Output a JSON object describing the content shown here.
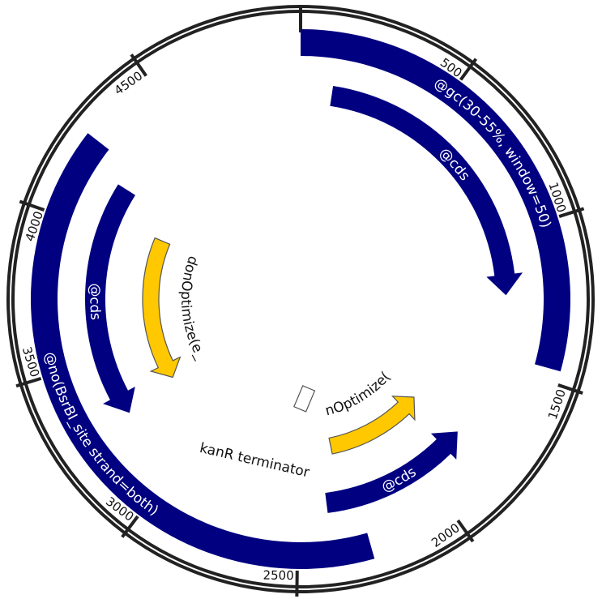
{
  "plasmid": {
    "sequence_length": 4980,
    "colors": {
      "backbone": "#222222",
      "feature_blue": "#000080",
      "feature_yellow": "#ffc800",
      "yellow_outline": "#555555",
      "label_on_blue": "#ffffff",
      "label_outside": "#111111"
    },
    "ticks": [
      {
        "position": 0,
        "label": ""
      },
      {
        "position": 500,
        "label": "500"
      },
      {
        "position": 1000,
        "label": "1000"
      },
      {
        "position": 1500,
        "label": "1500"
      },
      {
        "position": 2000,
        "label": "2000"
      },
      {
        "position": 2500,
        "label": "2500"
      },
      {
        "position": 3000,
        "label": "3000"
      },
      {
        "position": 3500,
        "label": "3500"
      },
      {
        "position": 4000,
        "label": "4000"
      },
      {
        "position": 4500,
        "label": "4500"
      }
    ],
    "features": [
      {
        "name": "gc-constraint",
        "label": "@gc(30-55%, window=50)",
        "start": 0,
        "end": 1460,
        "strand": 0,
        "track": "outer",
        "color": "blue",
        "label_position": "on-feature"
      },
      {
        "name": "cds-top-right",
        "label": "@cds",
        "start": 120,
        "end": 1230,
        "strand": 1,
        "track": "middle",
        "color": "blue",
        "label_position": "on-feature"
      },
      {
        "name": "no-bsrbi-site",
        "label": "@no(BsrBI_site strand=both)",
        "start": 2270,
        "end": 4260,
        "strand": 0,
        "track": "outer",
        "color": "blue",
        "label_position": "on-feature"
      },
      {
        "name": "cds-left",
        "label": "@cds",
        "start": 3270,
        "end": 4180,
        "strand": -1,
        "track": "middle",
        "color": "blue",
        "label_position": "on-feature"
      },
      {
        "name": "codon-optimize-left",
        "label": "~CodonOptimize(e_coli)",
        "start": 3300,
        "end": 4050,
        "strand": -1,
        "track": "inner",
        "color": "yellow",
        "label_position": "inside"
      },
      {
        "name": "cds-bottom",
        "label": "@cds",
        "start": 1800,
        "end": 2390,
        "strand": -1,
        "track": "middle",
        "color": "blue",
        "label_position": "on-feature"
      },
      {
        "name": "codon-optimize-bottom",
        "label": "~CodonOptimize(e_coli)",
        "start": 1810,
        "end": 2330,
        "strand": -1,
        "track": "inner",
        "color": "yellow",
        "label_position": "inside"
      },
      {
        "name": "kanr-terminator",
        "label": "kanR terminator",
        "start": 2440,
        "end": 2480,
        "strand": 0,
        "track": "terminator",
        "color": "white",
        "label_position": "inside"
      }
    ]
  }
}
